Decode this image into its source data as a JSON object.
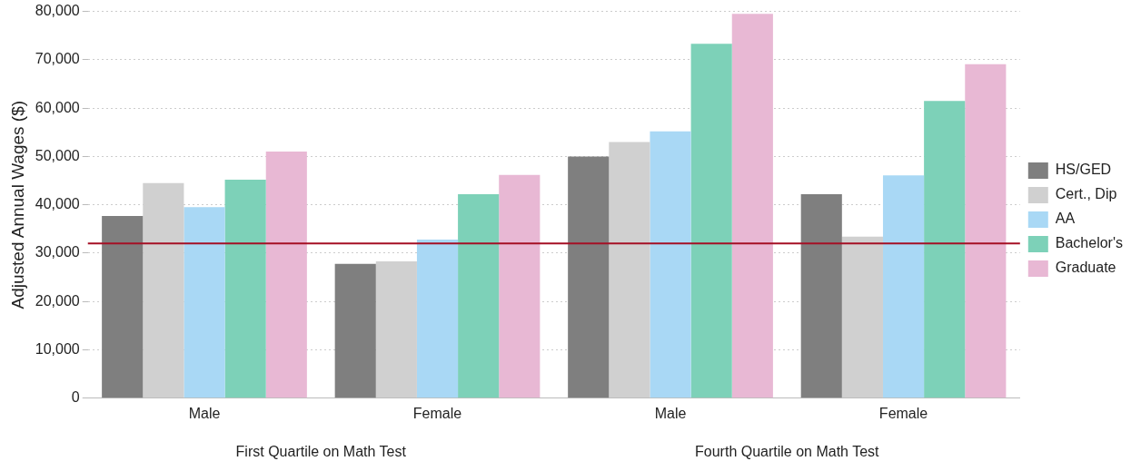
{
  "chart_data": {
    "type": "bar",
    "ylabel": "Adjusted Annual Wages ($)",
    "categories": [
      "Male",
      "Female",
      "Male",
      "Female"
    ],
    "series": [
      {
        "name": "HS/GED",
        "color": "#7f7f7f",
        "values": [
          37700,
          27800,
          50000,
          42200
        ]
      },
      {
        "name": "Cert., Dip",
        "color": "#d0d0d0",
        "values": [
          44500,
          28300,
          53000,
          33400
        ]
      },
      {
        "name": "AA",
        "color": "#a9d8f5",
        "values": [
          39500,
          32800,
          55200,
          46100
        ]
      },
      {
        "name": "Bachelor's",
        "color": "#7dd1b8",
        "values": [
          45200,
          42200,
          73300,
          61500
        ]
      },
      {
        "name": "Graduate",
        "color": "#e8b8d4",
        "values": [
          51000,
          46200,
          79500,
          69100
        ]
      }
    ],
    "ylim": [
      0,
      80000
    ],
    "yticks": [
      {
        "value": 0,
        "label": "0"
      },
      {
        "value": 10000,
        "label": "10,000"
      },
      {
        "value": 20000,
        "label": "20,000"
      },
      {
        "value": 30000,
        "label": "30,000"
      },
      {
        "value": 40000,
        "label": "40,000"
      },
      {
        "value": 50000,
        "label": "50,000"
      },
      {
        "value": 60000,
        "label": "60,000"
      },
      {
        "value": 70000,
        "label": "70,000"
      },
      {
        "value": 80000,
        "label": "80,000"
      }
    ],
    "ref_lines": [
      {
        "axis": "y",
        "value": 32000,
        "color": "#a50f24"
      }
    ],
    "annotations": [
      "First Quartile on Math Test",
      "Fourth Quartile on Math Test"
    ],
    "grid": "y",
    "legend": "right"
  }
}
